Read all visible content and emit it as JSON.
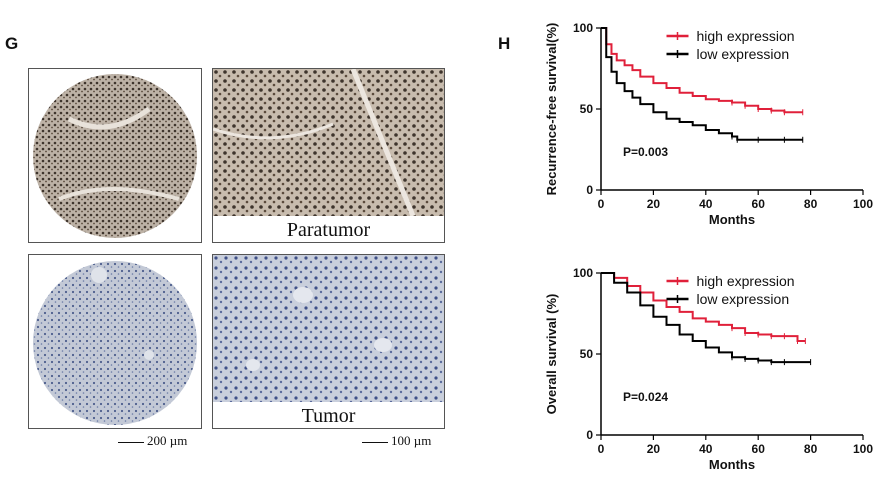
{
  "panels": {
    "g_label": "G",
    "h_label": "H"
  },
  "histology": {
    "paratumor_caption": "Paratumor",
    "tumor_caption": "Tumor",
    "scale_left": "200 µm",
    "scale_right": "100 µm",
    "colors": {
      "paratumor_stain": "#5a4a3c",
      "paratumor_bg": "#c8bcae",
      "tumor_stain": "#4b5d8c",
      "tumor_bg": "#c9cfdc"
    }
  },
  "chart_data": [
    {
      "type": "line",
      "ylabel": "Recurrence-free survival(%)",
      "xlabel": "Months",
      "xlim": [
        0,
        100
      ],
      "ylim": [
        0,
        100
      ],
      "xticks": [
        0,
        20,
        40,
        60,
        80,
        100
      ],
      "yticks": [
        0,
        50,
        100
      ],
      "annotation": "P=0.003",
      "legend_position": "top-right",
      "series": [
        {
          "name": "high expression",
          "color": "#e0203a",
          "x": [
            0,
            2,
            4,
            6,
            9,
            12,
            15,
            20,
            25,
            30,
            35,
            40,
            45,
            50,
            55,
            60,
            65,
            70,
            77
          ],
          "y": [
            100,
            90,
            84,
            80,
            77,
            74,
            70,
            66,
            63,
            60,
            58,
            56,
            55,
            54,
            52,
            50,
            49,
            48,
            48
          ]
        },
        {
          "name": "low expression",
          "color": "#000000",
          "x": [
            0,
            2,
            4,
            6,
            9,
            12,
            15,
            20,
            25,
            30,
            35,
            40,
            45,
            50,
            52,
            60,
            70,
            77
          ],
          "y": [
            100,
            82,
            73,
            66,
            61,
            57,
            53,
            48,
            44,
            42,
            40,
            37,
            35,
            33,
            31,
            31,
            31,
            31
          ]
        }
      ]
    },
    {
      "type": "line",
      "ylabel": "Overall survival (%)",
      "xlabel": "Months",
      "xlim": [
        0,
        100
      ],
      "ylim": [
        0,
        100
      ],
      "xticks": [
        0,
        20,
        40,
        60,
        80,
        100
      ],
      "yticks": [
        0,
        50,
        100
      ],
      "annotation": "P=0.024",
      "legend_position": "top-right",
      "series": [
        {
          "name": "high expression",
          "color": "#e0203a",
          "x": [
            0,
            5,
            10,
            15,
            20,
            25,
            30,
            35,
            40,
            45,
            50,
            55,
            60,
            65,
            70,
            75,
            78
          ],
          "y": [
            100,
            97,
            92,
            88,
            83,
            79,
            76,
            72,
            70,
            68,
            66,
            63,
            62,
            61,
            61,
            58,
            58
          ]
        },
        {
          "name": "low expression",
          "color": "#000000",
          "x": [
            0,
            5,
            10,
            15,
            20,
            25,
            30,
            35,
            40,
            45,
            50,
            55,
            60,
            65,
            70,
            80
          ],
          "y": [
            100,
            94,
            88,
            80,
            73,
            68,
            62,
            58,
            54,
            51,
            48,
            47,
            46,
            45,
            45,
            45
          ]
        }
      ]
    }
  ]
}
